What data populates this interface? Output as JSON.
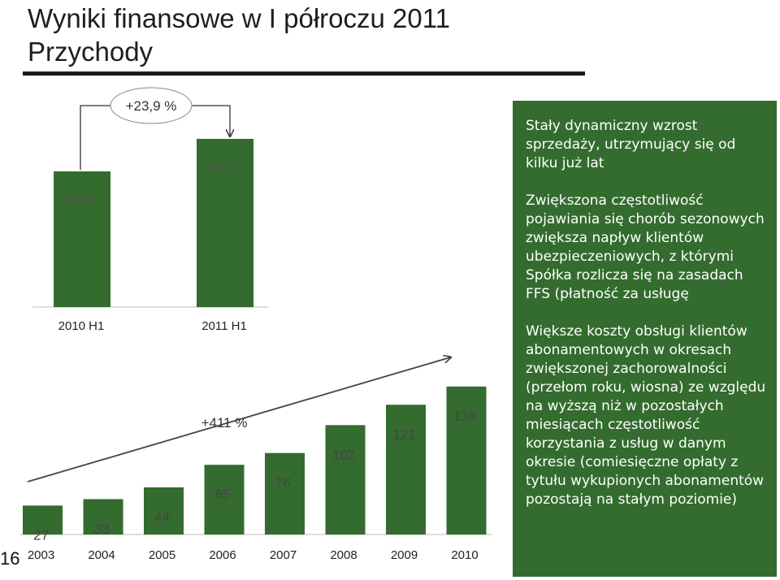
{
  "title_line1": "Wyniki finansowe w I półroczu 2011",
  "title_line2": "Przychody",
  "page_number": "16",
  "colors": {
    "bar": "#336c2e",
    "panel": "#336c2e",
    "panel_text": "#ffffff"
  },
  "chart_data": [
    {
      "type": "bar",
      "categories": [
        "2010 H1",
        "2011 H1"
      ],
      "values": [
        65.5,
        81.2
      ],
      "value_labels": [
        "65,5",
        "81,2"
      ],
      "annotation": "+23,9 %"
    },
    {
      "type": "bar",
      "categories": [
        "2003",
        "2004",
        "2005",
        "2006",
        "2007",
        "2008",
        "2009",
        "2010"
      ],
      "values": [
        27,
        33,
        44,
        65,
        76,
        102,
        121,
        138
      ],
      "value_labels": [
        "27",
        "33",
        "44",
        "65",
        "76",
        "102",
        "121",
        "138"
      ],
      "annotation": "+411 %"
    }
  ],
  "panel": {
    "paragraphs": [
      "Stały dynamiczny wzrost sprzedaży, utrzymujący się od kilku już lat",
      "Zwiększona częstotliwość pojawiania się chorób sezonowych zwiększa napływ klientów ubezpieczeniowych, z którymi Spółka rozlicza się na zasadach FFS (płatność za usługę",
      "Większe koszty obsługi klientów abonamentowych w okresach zwiększonej zachorowalności (przełom roku, wiosna) ze względu na wyższą niż w pozostałych miesiącach częstotliwość korzystania z usług w danym okresie (comiesięczne opłaty z tytułu wykupionych abonamentów pozostają na stałym poziomie)"
    ]
  }
}
